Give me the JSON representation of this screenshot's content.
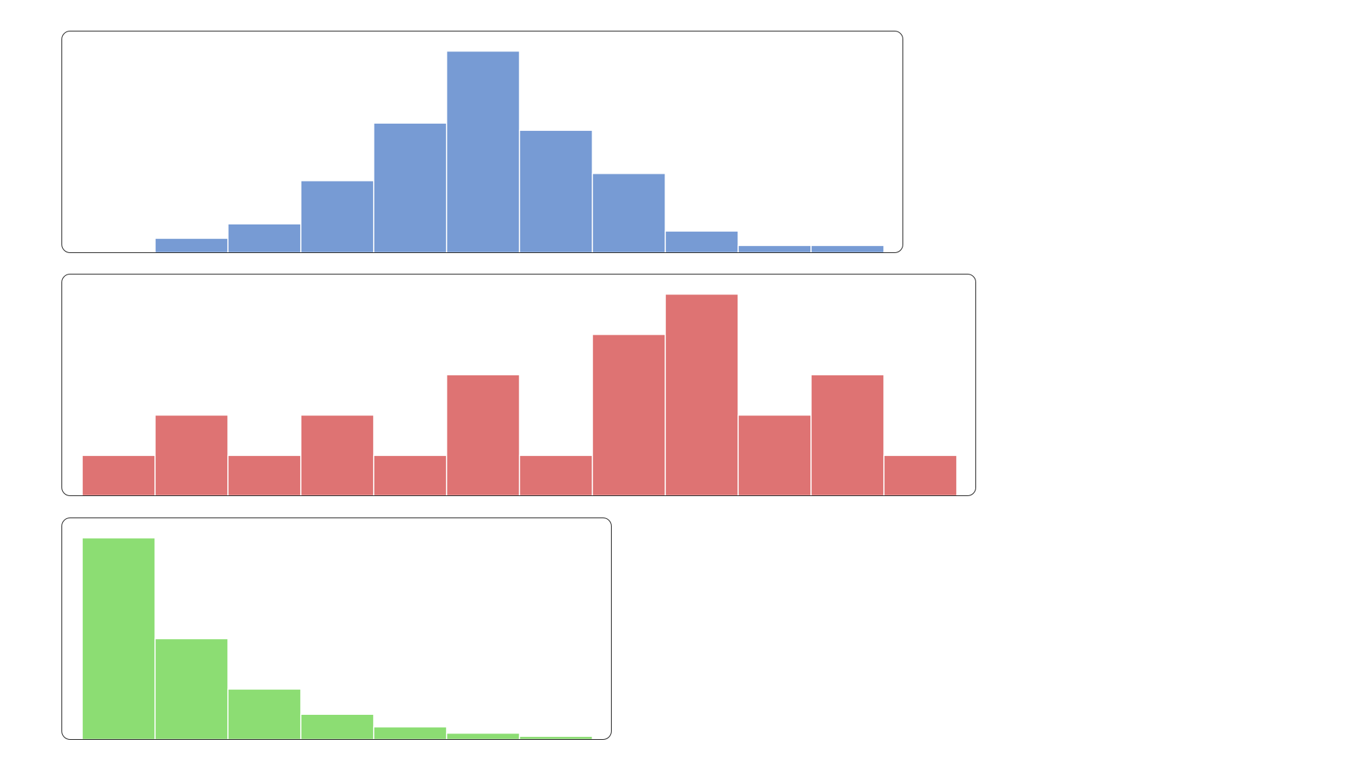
{
  "chart_data": [
    {
      "type": "bar",
      "subtype": "histogram",
      "color": "#779bd4",
      "values": [
        0,
        2,
        4,
        10,
        18,
        28,
        17,
        11,
        3,
        1,
        1
      ],
      "grid": false
    },
    {
      "type": "bar",
      "subtype": "histogram",
      "color": "#de7373",
      "values": [
        1,
        2,
        1,
        2,
        1,
        3,
        1,
        4,
        5,
        2,
        3,
        1
      ],
      "grid": false
    },
    {
      "type": "bar",
      "subtype": "histogram",
      "color": "#8cdd73",
      "values": [
        64,
        32,
        16,
        8,
        4,
        2,
        1
      ],
      "grid": false
    }
  ]
}
